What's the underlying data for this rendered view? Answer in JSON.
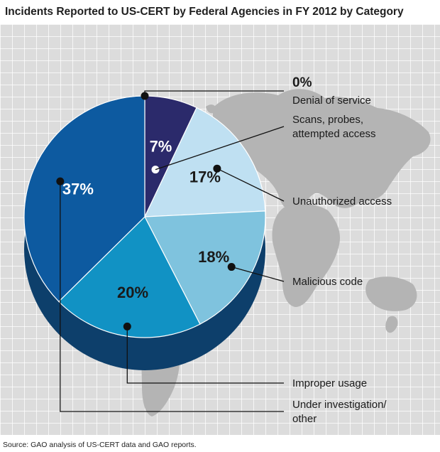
{
  "title": "Incidents Reported to US-CERT by Federal Agencies in FY 2012 by Category",
  "source": "Source: GAO analysis of US-CERT data and GAO reports.",
  "chart_data": {
    "type": "pie",
    "title": "Incidents Reported to US-CERT by Federal Agencies in FY 2012 by Category",
    "slices": [
      {
        "label": "Denial of service",
        "label_lines": [
          "Denial of service"
        ],
        "value": 0,
        "value_label": "0%",
        "color": "#1e2f63"
      },
      {
        "label": "Scans, probes, attempted access",
        "label_lines": [
          "Scans, probes,",
          "attempted access"
        ],
        "value": 7,
        "value_label": "7%",
        "color": "#2b2a6b"
      },
      {
        "label": "Unauthorized access",
        "label_lines": [
          "Unauthorized access"
        ],
        "value": 17,
        "value_label": "17%",
        "color": "#bfe0f2"
      },
      {
        "label": "Malicious code",
        "label_lines": [
          "Malicious code"
        ],
        "value": 18,
        "value_label": "18%",
        "color": "#7fc3de"
      },
      {
        "label": "Improper usage",
        "label_lines": [
          "Improper usage"
        ],
        "value": 20,
        "value_label": "20%",
        "color": "#1192c4"
      },
      {
        "label": "Under investigation/ other",
        "label_lines": [
          "Under investigation/",
          "other"
        ],
        "value": 37,
        "value_label": "37%",
        "color": "#0d5aa0"
      }
    ],
    "side_color": "#0d3f6b",
    "background": "#dcdcdc"
  }
}
